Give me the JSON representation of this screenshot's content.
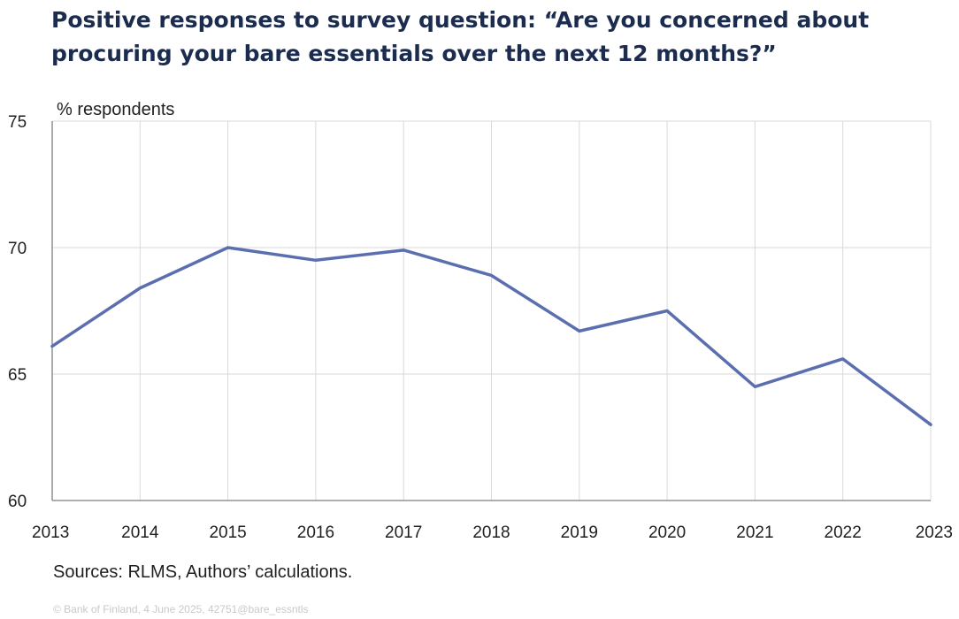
{
  "title": "Positive responses to survey question: “Are you concerned about procuring your bare essentials over the next 12 months?”",
  "source": "Sources: RLMS, Authors’ calculations.",
  "footer": "© Bank of Finland, 4 June 2025, 42751@bare_essntls",
  "colors": {
    "line": "#5b6fb0",
    "grid": "#d9d9d9",
    "axis": "#7f7f7f"
  },
  "chart_data": {
    "type": "line",
    "title": "Positive responses to survey question: “Are you concerned about procuring your bare essentials over the next 12 months?”",
    "xlabel": "",
    "ylabel": "% respondents",
    "x": [
      2013,
      2014,
      2015,
      2016,
      2017,
      2018,
      2019,
      2020,
      2021,
      2022,
      2023
    ],
    "series": [
      {
        "name": "",
        "values": [
          66.1,
          68.4,
          70.0,
          69.5,
          69.9,
          68.9,
          66.7,
          67.5,
          64.5,
          65.6,
          63.0
        ]
      }
    ],
    "ylim": [
      60,
      75
    ],
    "yticks": [
      60,
      65,
      70,
      75
    ],
    "grid": true,
    "legend": "none"
  }
}
